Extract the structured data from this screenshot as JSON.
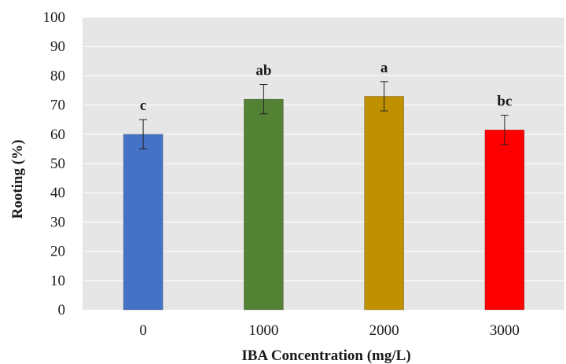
{
  "chart_data": {
    "type": "bar",
    "categories": [
      "0",
      "1000",
      "2000",
      "3000"
    ],
    "values": [
      60,
      72,
      73,
      61.5
    ],
    "error": [
      5,
      5,
      5,
      5
    ],
    "letters": [
      "c",
      "ab",
      "a",
      "bc"
    ],
    "colors": [
      "#4472c4",
      "#548235",
      "#bf9000",
      "#ff0000"
    ],
    "xlabel": "IBA Concentration (mg/L)",
    "ylabel": "Rooting (%)",
    "ylim": [
      0,
      100
    ],
    "yticks": [
      0,
      10,
      20,
      30,
      40,
      50,
      60,
      70,
      80,
      90,
      100
    ],
    "grid": true,
    "plot_background": "#e6e6e6",
    "gridline_color": "#ffffff"
  }
}
